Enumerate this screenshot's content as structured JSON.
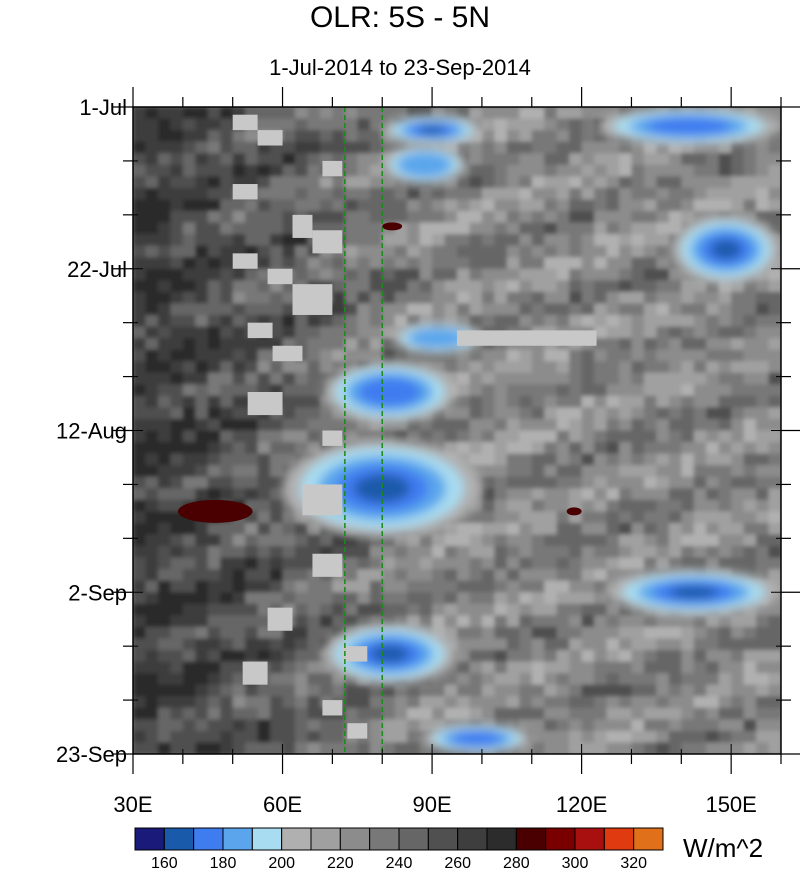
{
  "chart_data": {
    "type": "heatmap",
    "title": "OLR: 5S - 5N",
    "subtitle": "1-Jul-2014 to 23-Sep-2014",
    "x_ticks": [
      {
        "value": 30,
        "label": "30E"
      },
      {
        "value": 60,
        "label": "60E"
      },
      {
        "value": 90,
        "label": "90E"
      },
      {
        "value": 120,
        "label": "120E"
      },
      {
        "value": 150,
        "label": "150E"
      }
    ],
    "y_ticks": [
      {
        "day": 0,
        "label": "1-Jul"
      },
      {
        "day": 21,
        "label": "22-Jul"
      },
      {
        "day": 42,
        "label": "12-Aug"
      },
      {
        "day": 63,
        "label": "2-Sep"
      },
      {
        "day": 84,
        "label": "23-Sep"
      }
    ],
    "xlim": [
      30,
      160
    ],
    "ylim_days": [
      0,
      84
    ],
    "reference_lines_lon": [
      72.5,
      80
    ],
    "colorbar": {
      "units": "W/m^2",
      "levels": [
        160,
        170,
        180,
        190,
        200,
        210,
        220,
        230,
        240,
        250,
        260,
        270,
        280,
        290,
        300,
        310,
        320
      ],
      "tick_labels": [
        "160",
        "180",
        "200",
        "220",
        "240",
        "260",
        "280",
        "300",
        "320"
      ],
      "tick_levels": [
        160,
        180,
        200,
        220,
        240,
        260,
        280,
        300,
        320
      ],
      "colors": [
        "#1a1a7a",
        "#1a5aaa",
        "#3f7cf0",
        "#5aa5ec",
        "#a8dcf0",
        "#b0b0b0",
        "#a0a0a0",
        "#8c8c8c",
        "#787878",
        "#666666",
        "#505050",
        "#3e3e3e",
        "#2c2c2c",
        "#4a0000",
        "#7a0000",
        "#a81010",
        "#e03a10",
        "#e0701a"
      ]
    },
    "features": {
      "convective_events": [
        {
          "lon": [
            80,
            100
          ],
          "day": [
            1,
            5
          ],
          "min_olr": 165
        },
        {
          "lon": [
            80,
            97
          ],
          "day": [
            5,
            10
          ],
          "min_olr": 185
        },
        {
          "lon": [
            123,
            160
          ],
          "day": [
            0,
            5
          ],
          "min_olr": 170
        },
        {
          "lon": [
            138,
            160
          ],
          "day": [
            14,
            23
          ],
          "min_olr": 160
        },
        {
          "lon": [
            82,
            100
          ],
          "day": [
            28,
            32
          ],
          "min_olr": 185
        },
        {
          "lon": [
            68,
            95
          ],
          "day": [
            33,
            41
          ],
          "min_olr": 170
        },
        {
          "lon": [
            60,
            100
          ],
          "day": [
            43,
            56
          ],
          "min_olr": 165
        },
        {
          "lon": [
            125,
            160
          ],
          "day": [
            60,
            66
          ],
          "min_olr": 160
        },
        {
          "lon": [
            68,
            95
          ],
          "day": [
            67,
            75
          ],
          "min_olr": 165
        },
        {
          "lon": [
            88,
            110
          ],
          "day": [
            80,
            84
          ],
          "min_olr": 170
        }
      ],
      "dry_anomalies": [
        {
          "lon": [
            39,
            54
          ],
          "day": [
            51,
            54
          ],
          "max_olr": 285
        },
        {
          "lon": [
            80,
            84
          ],
          "day": [
            15,
            16
          ],
          "max_olr": 285
        },
        {
          "lon": [
            117,
            120
          ],
          "day": [
            52,
            53
          ],
          "max_olr": 285
        }
      ],
      "missing_data_blocks": [
        {
          "lon": [
            50,
            55
          ],
          "day": [
            1,
            3
          ]
        },
        {
          "lon": [
            55,
            60
          ],
          "day": [
            3,
            5
          ]
        },
        {
          "lon": [
            50,
            55
          ],
          "day": [
            10,
            12
          ]
        },
        {
          "lon": [
            68,
            72
          ],
          "day": [
            7,
            9
          ]
        },
        {
          "lon": [
            62,
            66
          ],
          "day": [
            14,
            17
          ]
        },
        {
          "lon": [
            66,
            72
          ],
          "day": [
            16,
            19
          ]
        },
        {
          "lon": [
            50,
            55
          ],
          "day": [
            19,
            21
          ]
        },
        {
          "lon": [
            57,
            62
          ],
          "day": [
            21,
            23
          ]
        },
        {
          "lon": [
            62,
            70
          ],
          "day": [
            23,
            27
          ]
        },
        {
          "lon": [
            53,
            58
          ],
          "day": [
            28,
            30
          ]
        },
        {
          "lon": [
            58,
            64
          ],
          "day": [
            31,
            33
          ]
        },
        {
          "lon": [
            53,
            60
          ],
          "day": [
            37,
            40
          ]
        },
        {
          "lon": [
            68,
            72
          ],
          "day": [
            42,
            44
          ]
        },
        {
          "lon": [
            64,
            72
          ],
          "day": [
            49,
            53
          ]
        },
        {
          "lon": [
            66,
            72
          ],
          "day": [
            58,
            61
          ]
        },
        {
          "lon": [
            57,
            62
          ],
          "day": [
            65,
            68
          ]
        },
        {
          "lon": [
            72,
            77
          ],
          "day": [
            70,
            72
          ]
        },
        {
          "lon": [
            52,
            57
          ],
          "day": [
            72,
            75
          ]
        },
        {
          "lon": [
            68,
            72
          ],
          "day": [
            77,
            79
          ]
        },
        {
          "lon": [
            73,
            77
          ],
          "day": [
            80,
            82
          ]
        },
        {
          "lon": [
            95,
            123
          ],
          "day": [
            29,
            31
          ]
        }
      ]
    }
  }
}
